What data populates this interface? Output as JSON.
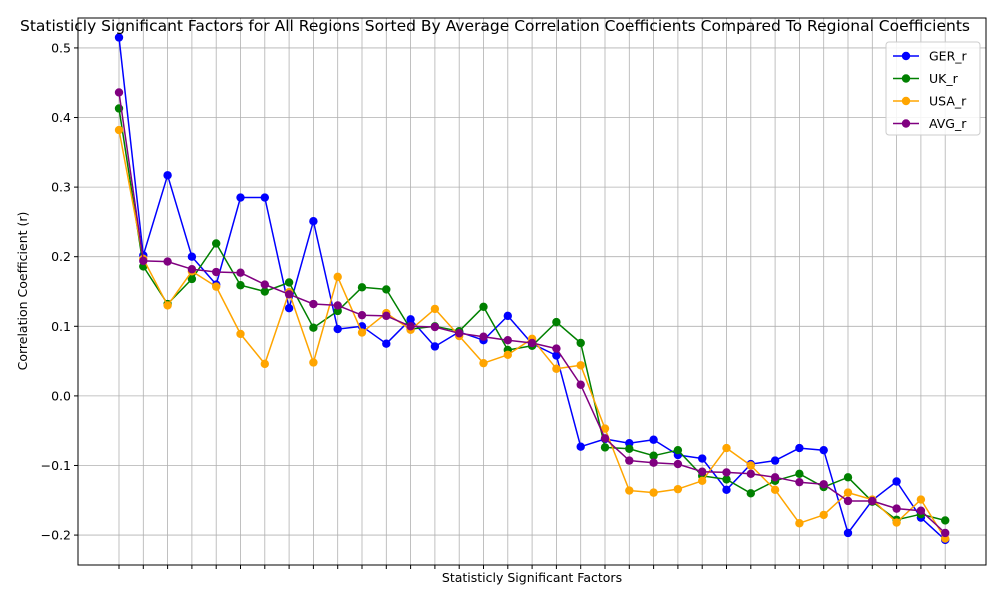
{
  "chart_data": {
    "type": "line",
    "title": "Statisticly Significant Factors for All Regions Sorted By Average Correlation Coefficients Compared To Regional Coefficients",
    "xlabel": "Statisticly Significant Factors",
    "ylabel": "Correlation Coefficient (r)",
    "ylim": [
      -0.243,
      0.543
    ],
    "yticks": [
      0.5,
      0.4,
      0.3,
      0.2,
      0.1,
      0.0,
      -0.1,
      -0.2
    ],
    "ytick_labels": [
      "0.5",
      "0.4",
      "0.3",
      "0.2",
      "0.1",
      "0.0",
      "−0.1",
      "−0.2"
    ],
    "x_count": 35,
    "grid": true,
    "legend_position": "top-right",
    "series": [
      {
        "name": "GER_r",
        "color": "#0000ff",
        "values": [
          0.515,
          0.202,
          0.317,
          0.2,
          0.16,
          0.285,
          0.285,
          0.126,
          0.251,
          0.096,
          0.1,
          0.075,
          0.11,
          0.071,
          0.092,
          0.08,
          0.115,
          0.075,
          0.058,
          -0.073,
          -0.062,
          -0.068,
          -0.063,
          -0.085,
          -0.09,
          -0.135,
          -0.098,
          -0.093,
          -0.075,
          -0.078,
          -0.197,
          -0.15,
          -0.123,
          -0.175,
          -0.207
        ]
      },
      {
        "name": "UK_r",
        "color": "#008000",
        "values": [
          0.413,
          0.186,
          0.132,
          0.168,
          0.219,
          0.159,
          0.15,
          0.163,
          0.098,
          0.122,
          0.156,
          0.153,
          0.096,
          0.1,
          0.093,
          0.128,
          0.066,
          0.072,
          0.106,
          0.076,
          -0.074,
          -0.076,
          -0.086,
          -0.078,
          -0.115,
          -0.12,
          -0.14,
          -0.122,
          -0.112,
          -0.131,
          -0.117,
          -0.152,
          -0.178,
          -0.17,
          -0.179
        ]
      },
      {
        "name": "USA_r",
        "color": "#ffa500",
        "values": [
          0.382,
          0.197,
          0.13,
          0.179,
          0.157,
          0.089,
          0.046,
          0.149,
          0.048,
          0.171,
          0.091,
          0.119,
          0.095,
          0.125,
          0.086,
          0.047,
          0.059,
          0.082,
          0.039,
          0.044,
          -0.047,
          -0.136,
          -0.139,
          -0.134,
          -0.122,
          -0.075,
          -0.1,
          -0.135,
          -0.183,
          -0.171,
          -0.139,
          -0.149,
          -0.182,
          -0.149,
          -0.205
        ]
      },
      {
        "name": "AVG_r",
        "color": "#800080",
        "values": [
          0.436,
          0.194,
          0.193,
          0.182,
          0.178,
          0.177,
          0.16,
          0.146,
          0.132,
          0.13,
          0.116,
          0.115,
          0.1,
          0.099,
          0.09,
          0.085,
          0.08,
          0.076,
          0.068,
          0.016,
          -0.061,
          -0.093,
          -0.096,
          -0.098,
          -0.109,
          -0.11,
          -0.112,
          -0.117,
          -0.124,
          -0.127,
          -0.151,
          -0.151,
          -0.162,
          -0.165,
          -0.197
        ]
      }
    ]
  }
}
